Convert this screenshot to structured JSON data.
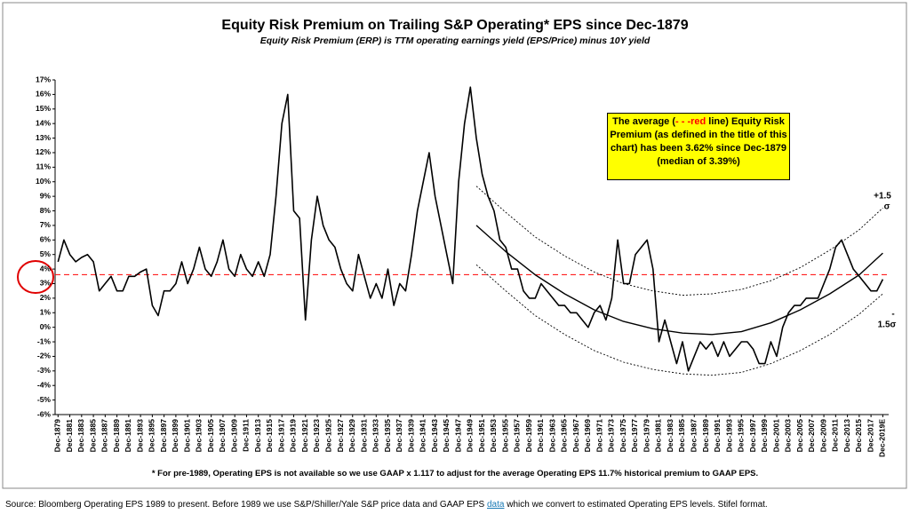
{
  "chart_data": {
    "type": "line",
    "title": "Equity Risk Premium on Trailing S&P Operating* EPS since Dec-1879",
    "subtitle": "Equity Risk Premium (ERP) is  TTM operating earnings yield (EPS/Price) minus 10Y yield",
    "annotation": [
      "The average (",
      "- - -red",
      " line) Equity Risk Premium (as defined in the title of this chart) has been 3.62% since Dec-1879 (median of 3.39%)"
    ],
    "band_labels": {
      "upper": [
        "+1.5",
        "σ"
      ],
      "lower": [
        "-",
        "1.5σ"
      ]
    },
    "footnote": "* For pre-1989, Operating EPS is not available so we use GAAP x 1.117 to adjust for the average Operating EPS 11.7% historical premium to GAAP EPS.",
    "source": [
      "Source: Bloomberg Operating EPS 1989 to present. Before 1989  we use S&P/Shiller/Yale  S&P price data  and GAAP EPS ",
      "data",
      " which we convert to estimated Operating EPS levels.  Stifel format."
    ],
    "average": {
      "value": 3.62,
      "color": "#ff0000"
    },
    "xlim": [
      1878.5,
      2020
    ],
    "ylim": [
      -6,
      17
    ],
    "yticks": [
      {
        "value": -6,
        "label": "-6%"
      },
      {
        "value": -5,
        "label": "-5%"
      },
      {
        "value": -4,
        "label": "-4%"
      },
      {
        "value": -3,
        "label": "-3%"
      },
      {
        "value": -2,
        "label": "-2%"
      },
      {
        "value": -1,
        "label": "-1%"
      },
      {
        "value": 0,
        "label": "0%"
      },
      {
        "value": 1,
        "label": "1%"
      },
      {
        "value": 2,
        "label": "2%"
      },
      {
        "value": 3,
        "label": "3%"
      },
      {
        "value": 4,
        "label": "4%"
      },
      {
        "value": 5,
        "label": "5%"
      },
      {
        "value": 6,
        "label": "6%"
      },
      {
        "value": 7,
        "label": "7%"
      },
      {
        "value": 8,
        "label": "8%"
      },
      {
        "value": 9,
        "label": "9%"
      },
      {
        "value": 10,
        "label": "10%"
      },
      {
        "value": 11,
        "label": "11%"
      },
      {
        "value": 12,
        "label": "12%"
      },
      {
        "value": 13,
        "label": "13%"
      },
      {
        "value": 14,
        "label": "14%"
      },
      {
        "value": 15,
        "label": "15%"
      },
      {
        "value": 16,
        "label": "16%"
      },
      {
        "value": 17,
        "label": "17%"
      }
    ],
    "xticks": [
      {
        "value": 1879,
        "label": "Dec-1879"
      },
      {
        "value": 1881,
        "label": "Dec-1881"
      },
      {
        "value": 1883,
        "label": "Dec-1883"
      },
      {
        "value": 1885,
        "label": "Dec-1885"
      },
      {
        "value": 1887,
        "label": "Dec-1887"
      },
      {
        "value": 1889,
        "label": "Dec-1889"
      },
      {
        "value": 1891,
        "label": "Dec-1891"
      },
      {
        "value": 1893,
        "label": "Dec-1893"
      },
      {
        "value": 1895,
        "label": "Dec-1895"
      },
      {
        "value": 1897,
        "label": "Dec-1897"
      },
      {
        "value": 1899,
        "label": "Dec-1899"
      },
      {
        "value": 1901,
        "label": "Dec-1901"
      },
      {
        "value": 1903,
        "label": "Dec-1903"
      },
      {
        "value": 1905,
        "label": "Dec-1905"
      },
      {
        "value": 1907,
        "label": "Dec-1907"
      },
      {
        "value": 1909,
        "label": "Dec-1909"
      },
      {
        "value": 1911,
        "label": "Dec-1911"
      },
      {
        "value": 1913,
        "label": "Dec-1913"
      },
      {
        "value": 1915,
        "label": "Dec-1915"
      },
      {
        "value": 1917,
        "label": "Dec-1917"
      },
      {
        "value": 1919,
        "label": "Dec-1919"
      },
      {
        "value": 1921,
        "label": "Dec-1921"
      },
      {
        "value": 1923,
        "label": "Dec-1923"
      },
      {
        "value": 1925,
        "label": "Dec-1925"
      },
      {
        "value": 1927,
        "label": "Dec-1927"
      },
      {
        "value": 1929,
        "label": "Dec-1929"
      },
      {
        "value": 1931,
        "label": "Dec-1931"
      },
      {
        "value": 1933,
        "label": "Dec-1933"
      },
      {
        "value": 1935,
        "label": "Dec-1935"
      },
      {
        "value": 1937,
        "label": "Dec-1937"
      },
      {
        "value": 1939,
        "label": "Dec-1939"
      },
      {
        "value": 1941,
        "label": "Dec-1941"
      },
      {
        "value": 1943,
        "label": "Dec-1943"
      },
      {
        "value": 1945,
        "label": "Dec-1945"
      },
      {
        "value": 1947,
        "label": "Dec-1947"
      },
      {
        "value": 1949,
        "label": "Dec-1949"
      },
      {
        "value": 1951,
        "label": "Dec-1951"
      },
      {
        "value": 1953,
        "label": "Dec-1953"
      },
      {
        "value": 1955,
        "label": "Dec-1955"
      },
      {
        "value": 1957,
        "label": "Dec-1957"
      },
      {
        "value": 1959,
        "label": "Dec-1959"
      },
      {
        "value": 1961,
        "label": "Dec-1961"
      },
      {
        "value": 1963,
        "label": "Dec-1963"
      },
      {
        "value": 1965,
        "label": "Dec-1965"
      },
      {
        "value": 1967,
        "label": "Dec-1967"
      },
      {
        "value": 1969,
        "label": "Dec-1969"
      },
      {
        "value": 1971,
        "label": "Dec-1971"
      },
      {
        "value": 1973,
        "label": "Dec-1973"
      },
      {
        "value": 1975,
        "label": "Dec-1975"
      },
      {
        "value": 1977,
        "label": "Dec-1977"
      },
      {
        "value": 1979,
        "label": "Dec-1979"
      },
      {
        "value": 1981,
        "label": "Dec-1981"
      },
      {
        "value": 1983,
        "label": "Dec-1983"
      },
      {
        "value": 1985,
        "label": "Dec-1985"
      },
      {
        "value": 1987,
        "label": "Dec-1987"
      },
      {
        "value": 1989,
        "label": "Dec-1989"
      },
      {
        "value": 1991,
        "label": "Dec-1991"
      },
      {
        "value": 1993,
        "label": "Dec-1993"
      },
      {
        "value": 1995,
        "label": "Dec-1995"
      },
      {
        "value": 1997,
        "label": "Dec-1997"
      },
      {
        "value": 1999,
        "label": "Dec-1999"
      },
      {
        "value": 2001,
        "label": "Dec-2001"
      },
      {
        "value": 2003,
        "label": "Dec-2003"
      },
      {
        "value": 2005,
        "label": "Dec-2005"
      },
      {
        "value": 2007,
        "label": "Dec-2007"
      },
      {
        "value": 2009,
        "label": "Dec-2009"
      },
      {
        "value": 2011,
        "label": "Dec-2011"
      },
      {
        "value": 2013,
        "label": "Dec-2013"
      },
      {
        "value": 2015,
        "label": "Dec-2015"
      },
      {
        "value": 2017,
        "label": "Dec-2017"
      },
      {
        "value": 2019,
        "label": "Dec-2019E"
      }
    ],
    "series": [
      {
        "color": "#000000",
        "width": 1.6,
        "style": "solid",
        "x": [
          1879,
          1880,
          1881,
          1882,
          1883,
          1884,
          1885,
          1886,
          1887,
          1888,
          1889,
          1890,
          1891,
          1892,
          1893,
          1894,
          1895,
          1896,
          1897,
          1898,
          1899,
          1900,
          1901,
          1902,
          1903,
          1904,
          1905,
          1906,
          1907,
          1908,
          1909,
          1910,
          1911,
          1912,
          1913,
          1914,
          1915,
          1916,
          1917,
          1918,
          1919,
          1920,
          1921,
          1922,
          1923,
          1924,
          1925,
          1926,
          1927,
          1928,
          1929,
          1930,
          1931,
          1932,
          1933,
          1934,
          1935,
          1936,
          1937,
          1938,
          1939,
          1940,
          1941,
          1942,
          1943,
          1944,
          1945,
          1946,
          1947,
          1948,
          1949,
          1950,
          1951,
          1952,
          1953,
          1954,
          1955,
          1956,
          1957,
          1958,
          1959,
          1960,
          1961,
          1962,
          1963,
          1964,
          1965,
          1966,
          1967,
          1968,
          1969,
          1970,
          1971,
          1972,
          1973,
          1974,
          1975,
          1976,
          1977,
          1978,
          1979,
          1980,
          1981,
          1982,
          1983,
          1984,
          1985,
          1986,
          1987,
          1988,
          1989,
          1990,
          1991,
          1992,
          1993,
          1994,
          1995,
          1996,
          1997,
          1998,
          1999,
          2000,
          2001,
          2002,
          2003,
          2004,
          2005,
          2006,
          2007,
          2008,
          2009,
          2010,
          2011,
          2012,
          2013,
          2014,
          2015,
          2016,
          2017,
          2018,
          2019
        ],
        "values": [
          4.5,
          6,
          5,
          4.5,
          4.8,
          5,
          4.5,
          2.5,
          3,
          3.5,
          2.5,
          2.5,
          3.5,
          3.5,
          3.8,
          4,
          1.5,
          0.8,
          2.5,
          2.5,
          3,
          4.5,
          3,
          4,
          5.5,
          4,
          3.5,
          4.5,
          6,
          4,
          3.5,
          5,
          4,
          3.5,
          4.5,
          3.5,
          5,
          9,
          14,
          16,
          8,
          7.5,
          0.5,
          6,
          9,
          7,
          6,
          5.5,
          4,
          3,
          2.5,
          5,
          3.5,
          2,
          3,
          2,
          4,
          1.5,
          3,
          2.5,
          5,
          8,
          10,
          12,
          9,
          7,
          5,
          3,
          10,
          14,
          16.5,
          13,
          10.5,
          9,
          8,
          6,
          5.5,
          4,
          4,
          2.5,
          2,
          2,
          3,
          2.5,
          2,
          1.5,
          1.5,
          1,
          1,
          0.5,
          0,
          1,
          1.5,
          0.5,
          2,
          6,
          3,
          3,
          5,
          5.5,
          6,
          4,
          -1,
          0.5,
          -1,
          -2.5,
          -1,
          -3,
          -2,
          -1,
          -1.5,
          -1,
          -2,
          -1,
          -2,
          -1.5,
          -1,
          -1,
          -1.5,
          -2.5,
          -2.5,
          -1,
          -2,
          0,
          1,
          1.5,
          1.5,
          2,
          2,
          2,
          3,
          4,
          5.5,
          6,
          5,
          4,
          3.5,
          3,
          2.5,
          2.5,
          3.3
        ]
      },
      {
        "color": "#000000",
        "width": 1.4,
        "style": "solid",
        "x": [
          1950,
          1955,
          1960,
          1965,
          1970,
          1975,
          1980,
          1985,
          1990,
          1995,
          2000,
          2005,
          2010,
          2015,
          2019
        ],
        "values": [
          7,
          5.2,
          3.6,
          2.3,
          1.2,
          0.4,
          -0.1,
          -0.4,
          -0.5,
          -0.3,
          0.3,
          1.2,
          2.3,
          3.6,
          5.1
        ]
      },
      {
        "color": "#000000",
        "width": 0.9,
        "style": "dotted",
        "x": [
          1950,
          1955,
          1960,
          1965,
          1970,
          1975,
          1980,
          1985,
          1990,
          1995,
          2000,
          2005,
          2010,
          2015,
          2019
        ],
        "values": [
          9.7,
          7.9,
          6.2,
          4.9,
          3.8,
          3,
          2.5,
          2.2,
          2.3,
          2.6,
          3.2,
          4.1,
          5.3,
          6.7,
          8.2
        ]
      },
      {
        "color": "#000000",
        "width": 0.9,
        "style": "dotted",
        "x": [
          1950,
          1955,
          1960,
          1965,
          1970,
          1975,
          1980,
          1985,
          1990,
          1995,
          2000,
          2005,
          2010,
          2015,
          2019
        ],
        "values": [
          4.3,
          2.5,
          0.8,
          -0.5,
          -1.6,
          -2.4,
          -2.9,
          -3.2,
          -3.3,
          -3.1,
          -2.5,
          -1.6,
          -0.5,
          0.9,
          2.3
        ]
      }
    ]
  }
}
